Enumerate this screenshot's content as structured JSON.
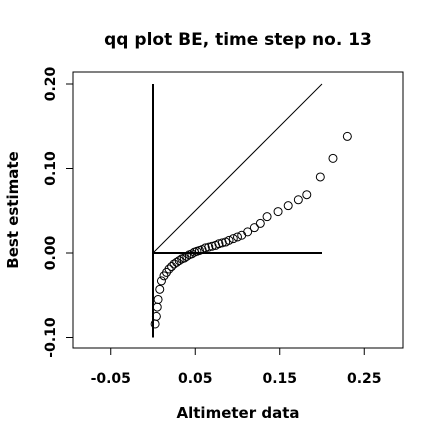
{
  "chart_data": {
    "type": "scatter",
    "title": "qq plot BE, time step no. 13",
    "xlabel": "Altimeter data",
    "ylabel": "Best estimate",
    "xlim": [
      -0.1,
      0.3
    ],
    "ylim": [
      -0.11,
      0.21
    ],
    "x_ticks": [
      -0.05,
      0.05,
      0.15,
      0.25
    ],
    "x_tick_labels": [
      "-0.05",
      "0.05",
      "0.15",
      "0.25"
    ],
    "y_ticks": [
      -0.1,
      0.0,
      0.1,
      0.2
    ],
    "y_tick_labels": [
      "-0.10",
      "0.00",
      "0.10",
      "0.20"
    ],
    "grid": false,
    "legend": "none",
    "reference_lines": [
      {
        "name": "identity",
        "x": [
          0.0,
          0.2
        ],
        "y": [
          0.0,
          0.2
        ]
      },
      {
        "name": "horizontal",
        "x": [
          0.0,
          0.2
        ],
        "y": [
          0.0,
          0.0
        ]
      },
      {
        "name": "vertical",
        "x": [
          0.0,
          0.0
        ],
        "y": [
          -0.1,
          0.2
        ]
      }
    ],
    "points": [
      {
        "x": 0.0025,
        "y": -0.084
      },
      {
        "x": 0.004,
        "y": -0.075
      },
      {
        "x": 0.005,
        "y": -0.064
      },
      {
        "x": 0.006,
        "y": -0.055
      },
      {
        "x": 0.008,
        "y": -0.043
      },
      {
        "x": 0.01,
        "y": -0.033
      },
      {
        "x": 0.013,
        "y": -0.027
      },
      {
        "x": 0.016,
        "y": -0.023
      },
      {
        "x": 0.019,
        "y": -0.019
      },
      {
        "x": 0.022,
        "y": -0.016
      },
      {
        "x": 0.025,
        "y": -0.013
      },
      {
        "x": 0.028,
        "y": -0.011
      },
      {
        "x": 0.031,
        "y": -0.009
      },
      {
        "x": 0.034,
        "y": -0.007
      },
      {
        "x": 0.037,
        "y": -0.006
      },
      {
        "x": 0.04,
        "y": -0.004
      },
      {
        "x": 0.043,
        "y": -0.002
      },
      {
        "x": 0.046,
        "y": -0.001
      },
      {
        "x": 0.049,
        "y": 0.001
      },
      {
        "x": 0.052,
        "y": 0.002
      },
      {
        "x": 0.055,
        "y": 0.003
      },
      {
        "x": 0.058,
        "y": 0.004
      },
      {
        "x": 0.062,
        "y": 0.006
      },
      {
        "x": 0.066,
        "y": 0.007
      },
      {
        "x": 0.07,
        "y": 0.008
      },
      {
        "x": 0.074,
        "y": 0.009
      },
      {
        "x": 0.078,
        "y": 0.011
      },
      {
        "x": 0.082,
        "y": 0.012
      },
      {
        "x": 0.086,
        "y": 0.013
      },
      {
        "x": 0.09,
        "y": 0.015
      },
      {
        "x": 0.095,
        "y": 0.017
      },
      {
        "x": 0.1,
        "y": 0.019
      },
      {
        "x": 0.105,
        "y": 0.021
      },
      {
        "x": 0.112,
        "y": 0.025
      },
      {
        "x": 0.12,
        "y": 0.03
      },
      {
        "x": 0.127,
        "y": 0.035
      },
      {
        "x": 0.135,
        "y": 0.043
      },
      {
        "x": 0.148,
        "y": 0.049
      },
      {
        "x": 0.16,
        "y": 0.056
      },
      {
        "x": 0.172,
        "y": 0.063
      },
      {
        "x": 0.182,
        "y": 0.069
      },
      {
        "x": 0.198,
        "y": 0.09
      },
      {
        "x": 0.213,
        "y": 0.112
      },
      {
        "x": 0.23,
        "y": 0.138
      }
    ]
  }
}
